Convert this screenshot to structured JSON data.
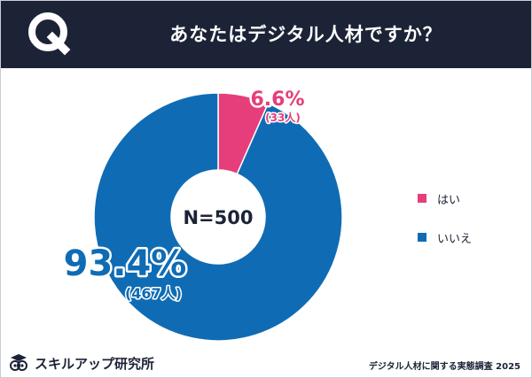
{
  "header": {
    "title": "あなたはデジタル人材ですか？",
    "q_label": "Q"
  },
  "chart_data": {
    "type": "pie",
    "title": "あなたはデジタル人材ですか？",
    "center_label": "N=500",
    "slices": [
      {
        "label": "はい",
        "percent": 6.6,
        "count": 33,
        "percent_text": "6.6%",
        "count_text": "(33人)",
        "color": "#e63e7a"
      },
      {
        "label": "いいえ",
        "percent": 93.4,
        "count": 467,
        "percent_text": "93.4%",
        "count_text": "(467人)",
        "color": "#0f6cb4"
      }
    ],
    "total": 500,
    "legend_position": "right"
  },
  "colors": {
    "header_bg": "#1c2336",
    "yes": "#e63e7a",
    "no": "#0f6cb4"
  },
  "footer": {
    "logo_text": "スキルアップ研究所",
    "logo_icon": "owl-icon",
    "note": "デジタル人材に関する実態調査 2025"
  }
}
